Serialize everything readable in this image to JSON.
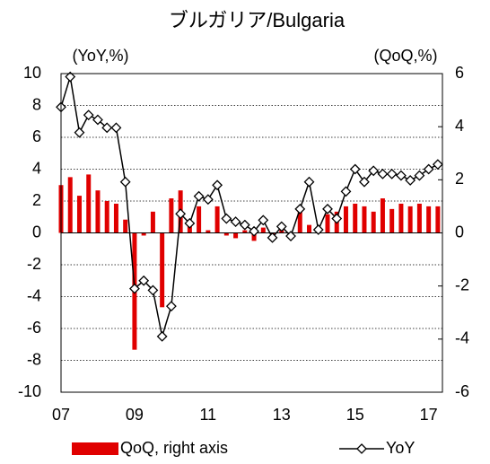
{
  "chart_data": {
    "type": "bar_line",
    "title": "ブルガリア/Bulgaria",
    "y_label": "(YoY,%)",
    "y2_label": "(QoQ,%)",
    "categories": [
      "07",
      null,
      null,
      null,
      null,
      null,
      null,
      null,
      "09",
      null,
      null,
      null,
      null,
      null,
      null,
      null,
      "11",
      null,
      null,
      null,
      null,
      null,
      null,
      null,
      "13",
      null,
      null,
      null,
      null,
      null,
      null,
      null,
      "15",
      null,
      null,
      null,
      null,
      null,
      null,
      null,
      "17",
      null
    ],
    "series": [
      {
        "name": "QoQ, right axis",
        "type": "bar",
        "axis": "y2",
        "color": "#e00000",
        "values": [
          1.8,
          2.1,
          1.4,
          2.2,
          1.6,
          1.2,
          1.1,
          0.5,
          -4.4,
          -0.1,
          0.8,
          -2.8,
          1.3,
          1.6,
          0.3,
          1.0,
          0.1,
          1.0,
          -0.1,
          -0.2,
          0.1,
          -0.3,
          0.2,
          -0.1,
          0.1,
          -0.1,
          0.8,
          0.3,
          0.2,
          0.7,
          0.8,
          1.0,
          1.1,
          1.0,
          0.8,
          1.3,
          0.9,
          1.1,
          1.0,
          1.1,
          1.0,
          1.0
        ]
      },
      {
        "name": "YoY",
        "type": "line",
        "axis": "y",
        "color": "#000000",
        "values": [
          7.9,
          9.8,
          6.3,
          7.4,
          7.1,
          6.6,
          6.6,
          3.2,
          -3.5,
          -3.0,
          -3.6,
          -6.5,
          -4.6,
          1.2,
          0.6,
          2.3,
          2.1,
          3.0,
          0.9,
          0.7,
          0.5,
          0.1,
          0.8,
          -0.3,
          0.4,
          -0.2,
          1.5,
          3.2,
          0.2,
          1.5,
          0.9,
          2.6,
          4.0,
          3.2,
          3.9,
          3.7,
          3.7,
          3.6,
          3.3,
          3.6,
          4.0,
          4.3
        ]
      }
    ],
    "ylim": [
      -10,
      10
    ],
    "yticks": [
      -10,
      -8,
      -6,
      -4,
      -2,
      0,
      2,
      4,
      6,
      8,
      10
    ],
    "y2lim": [
      -6,
      6
    ],
    "y2ticks": [
      -6,
      -4,
      -2,
      0,
      2,
      4,
      6
    ],
    "grid": true
  }
}
